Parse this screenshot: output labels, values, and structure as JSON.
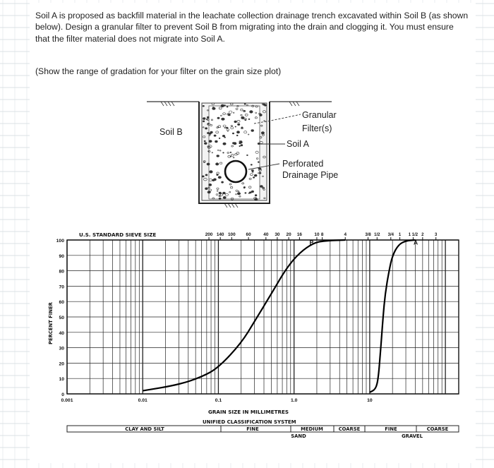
{
  "problem_text": "Soil A is proposed as backfill material in the leachate collection drainage trench excavated within Soil B (as shown below). Design a granular filter to prevent Soil B from migrating into the drain and clogging it. You must ensure that the filter material does not migrate into Soil A.",
  "instruction_text": "(Show the range of gradation for your filter on the grain size plot)",
  "trench": {
    "label_soil_b": "Soil B",
    "label_filter_line1": "Granular",
    "label_filter_line2": "Filter(s)",
    "label_soil_a": "Soil A",
    "label_pipe_line1": "Perforated",
    "label_pipe_line2": "Drainage Pipe"
  },
  "chart_data": {
    "type": "line",
    "xscale": "log",
    "xlim": [
      0.001,
      150
    ],
    "ylim": [
      0,
      100
    ],
    "xlabel": "GRAIN SIZE IN MILLIMETRES",
    "ylabel": "PERCENT FINER",
    "x_ticks": [
      "0.001",
      "0.01",
      "0.1",
      "1.0",
      "10"
    ],
    "y_ticks": [
      "0",
      "10",
      "20",
      "30",
      "40",
      "50",
      "60",
      "70",
      "80",
      "90",
      "100"
    ],
    "sieve_title": "U.S. STANDARD SIEVE SIZE",
    "sieve_labels": [
      "200",
      "140",
      "100",
      "60",
      "40",
      "30",
      "20",
      "16",
      "10",
      "8",
      "4"
    ],
    "sieve_fractions": [
      "3/8",
      "1/2",
      "3/4",
      "1",
      "1 1/2",
      "2",
      "3"
    ],
    "series": [
      {
        "name": "B",
        "points": [
          [
            0.01,
            2
          ],
          [
            0.03,
            6
          ],
          [
            0.06,
            11
          ],
          [
            0.1,
            17
          ],
          [
            0.2,
            33
          ],
          [
            0.3,
            47
          ],
          [
            0.5,
            65
          ],
          [
            0.8,
            82
          ],
          [
            1.2,
            92
          ],
          [
            1.8,
            98
          ],
          [
            2.5,
            99.5
          ],
          [
            4.75,
            100
          ]
        ]
      },
      {
        "name": "A",
        "points": [
          [
            10,
            1
          ],
          [
            12,
            3
          ],
          [
            13,
            10
          ],
          [
            14,
            30
          ],
          [
            15,
            50
          ],
          [
            16,
            65
          ],
          [
            18,
            80
          ],
          [
            20,
            90
          ],
          [
            24,
            97
          ],
          [
            30,
            99.5
          ],
          [
            40,
            100
          ]
        ]
      }
    ],
    "classification": {
      "title": "UNIFIED CLASSIFICATION SYSTEM",
      "clay_silt": "CLAY AND SILT",
      "fine": "FINE",
      "medium": "MEDIUM",
      "coarse": "COARSE",
      "sand": "SAND",
      "gravel_fine": "FINE",
      "gravel_coarse": "COARSE",
      "gravel": "GRAVEL"
    }
  }
}
